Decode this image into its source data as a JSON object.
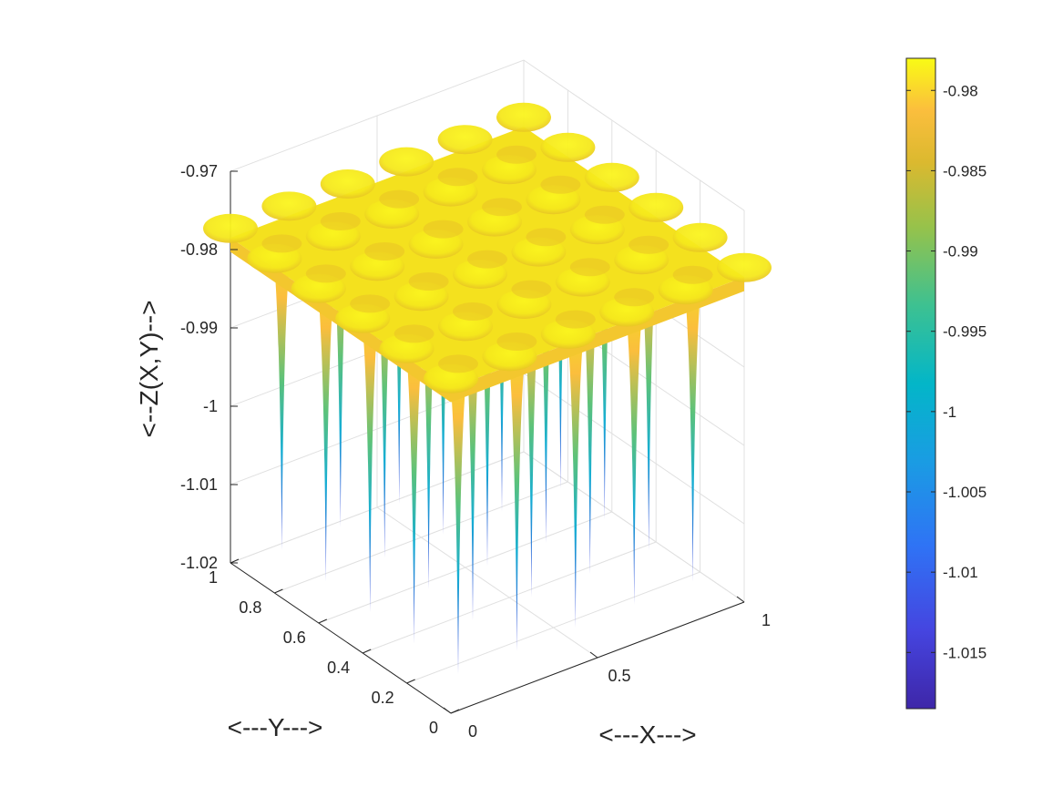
{
  "chart_data": {
    "type": "surface",
    "title": "",
    "xlabel": "<---X--->",
    "ylabel": "<---Y--->",
    "zlabel": "<--Z(X,Y)-->",
    "xlim": [
      0,
      1
    ],
    "ylim": [
      0,
      1
    ],
    "zlim": [
      -1.02,
      -0.97
    ],
    "x_ticks": [
      "0",
      "0.5",
      "1"
    ],
    "y_ticks": [
      "0",
      "0.2",
      "0.4",
      "0.6",
      "0.8",
      "1"
    ],
    "z_ticks": [
      "-0.97",
      "-0.98",
      "-0.99",
      "-1",
      "-1.01",
      "-1.02"
    ],
    "grid": true,
    "colormap": "parula",
    "colorbar": {
      "range": [
        -1.0185,
        -0.978
      ],
      "ticks": [
        "-0.98",
        "-0.985",
        "-0.99",
        "-0.995",
        "-1",
        "-1.005",
        "-1.01",
        "-1.015"
      ]
    },
    "surface": {
      "grid_points_per_axis": 5,
      "plateau_z": -0.9785,
      "ripple_z_range": [
        -0.981,
        -0.977
      ],
      "spike_min_z": -1.0185,
      "description_values": "periodic surface with sharp downward spikes at a 5x5 lattice in x,y"
    }
  }
}
